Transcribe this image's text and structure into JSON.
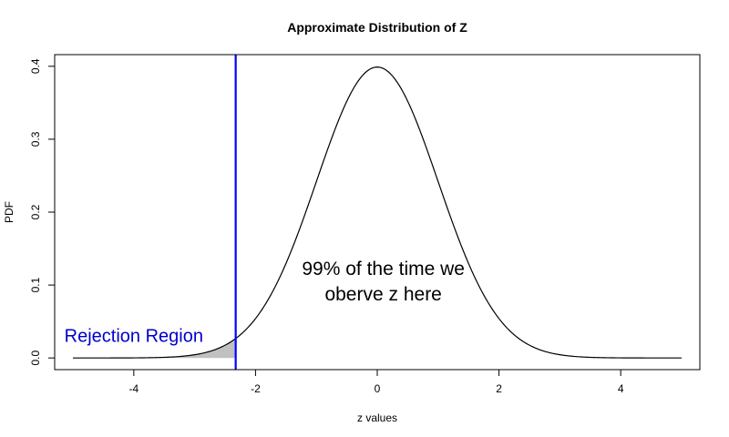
{
  "chart_data": {
    "type": "line",
    "title": "Approximate Distribution of Z",
    "xlabel": "z values",
    "ylabel": "PDF",
    "xlim": [
      -5.3,
      5.3
    ],
    "ylim": [
      -0.016,
      0.416
    ],
    "x_ticks": [
      -4,
      -2,
      0,
      2,
      4
    ],
    "y_ticks": [
      0.0,
      0.1,
      0.2,
      0.3,
      0.4
    ],
    "x_tick_labels": [
      "-4",
      "-2",
      "0",
      "2",
      "4"
    ],
    "y_tick_labels": [
      "0.0",
      "0.1",
      "0.2",
      "0.3",
      "0.4"
    ],
    "curve": {
      "distribution": "standard normal",
      "mean": 0,
      "sd": 1,
      "x_range": [
        -5,
        5
      ],
      "color": "#000000"
    },
    "shaded_region": {
      "x_range": [
        -3.5,
        -2.326
      ],
      "fill": "#c0c0c0"
    },
    "critical_line": {
      "x": -2.326,
      "color": "#0000ff"
    },
    "annotations": [
      {
        "lines": [
          "99% of the time we",
          "oberve z here"
        ],
        "x": 0.1,
        "y_lines": [
          0.114,
          0.079
        ],
        "color": "#000000"
      },
      {
        "lines": [
          "Rejection Region"
        ],
        "x": -4.0,
        "y_lines": [
          0.022
        ],
        "color": "#0000cd"
      }
    ],
    "grid": false,
    "legend": "none"
  }
}
